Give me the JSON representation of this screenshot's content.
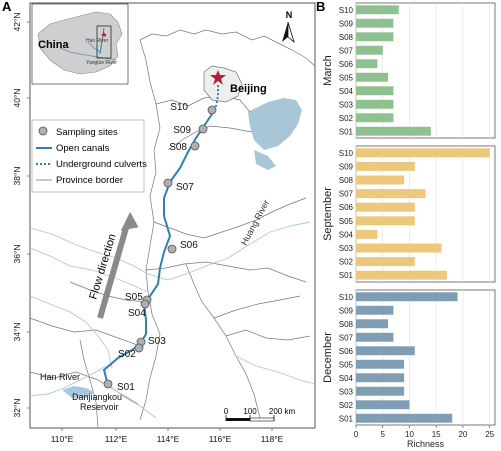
{
  "panel_a": {
    "label": "A",
    "lat_ticks": [
      "42°N",
      "40°N",
      "38°N",
      "36°N",
      "34°N",
      "32°N"
    ],
    "lon_ticks": [
      "110°E",
      "112°E",
      "114°E",
      "116°E",
      "118°E"
    ],
    "inset": {
      "country": "China",
      "han_river": "Han River",
      "yangtze_river": "Yangtze River"
    },
    "city": "Beijing",
    "north": "N",
    "legend": {
      "sampling_sites": "Sampling sites",
      "open_canals": "Open canals",
      "underground_culverts": "Underground culverts",
      "province_border": "Province border"
    },
    "flow": "Flow direction",
    "rivers": {
      "huang": "Huang River",
      "han": "Han River",
      "reservoir_line1": "Danjiangkou",
      "reservoir_line2": "Reservoir"
    },
    "scale": {
      "zero": "0",
      "mid": "100",
      "end": "200 km"
    },
    "sites": [
      "S10",
      "S09",
      "S08",
      "S07",
      "S06",
      "S05",
      "S04",
      "S03",
      "S02",
      "S01"
    ],
    "colors": {
      "canal": "#2f80b4",
      "lake": "#a9c6d9",
      "river": "#a8c8e0",
      "site": "#b0b0b0",
      "star": "#b0203a"
    }
  },
  "panel_b": {
    "label": "B"
  },
  "chart_data": {
    "type": "bar",
    "orientation": "horizontal",
    "categories": [
      "S10",
      "S09",
      "S08",
      "S07",
      "S06",
      "S05",
      "S04",
      "S03",
      "S02",
      "S01"
    ],
    "xlabel": "Richness",
    "xlim": [
      0,
      26
    ],
    "xticks": [
      0,
      5,
      10,
      15,
      20,
      25
    ],
    "grid": true,
    "series": [
      {
        "name": "March",
        "color": "#8fc08f",
        "values": [
          8,
          7,
          7,
          5,
          4,
          6,
          7,
          7,
          7,
          14
        ]
      },
      {
        "name": "September",
        "color": "#ecc97a",
        "values": [
          25,
          11,
          9,
          13,
          11,
          11,
          4,
          16,
          11,
          17
        ]
      },
      {
        "name": "December",
        "color": "#7f9db3",
        "values": [
          19,
          7,
          6,
          7,
          11,
          9,
          9,
          9,
          10,
          18
        ]
      }
    ]
  }
}
